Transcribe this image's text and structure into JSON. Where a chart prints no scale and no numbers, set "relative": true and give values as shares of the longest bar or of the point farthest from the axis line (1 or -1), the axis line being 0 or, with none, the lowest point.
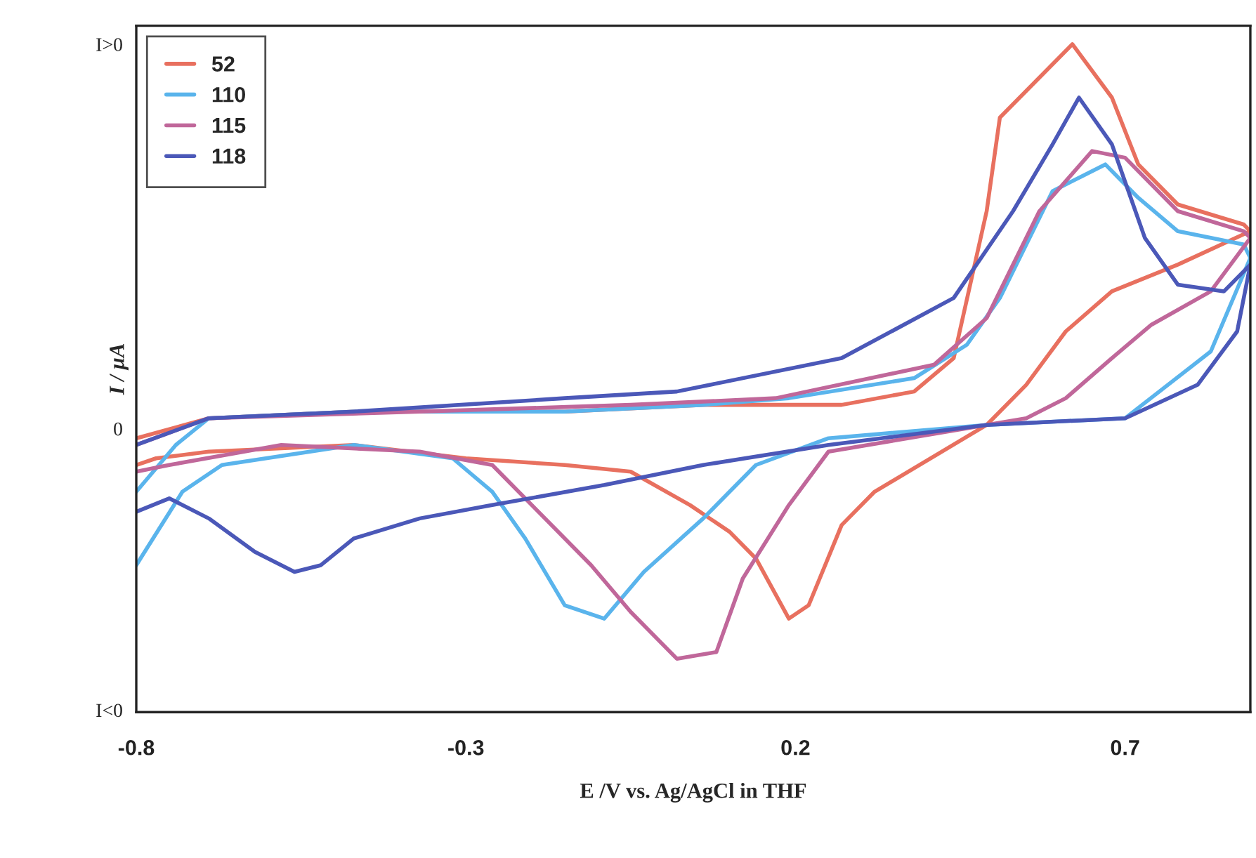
{
  "chart_data": {
    "type": "line",
    "relative": true,
    "xlabel": "E /V vs. Ag/AgCl in THF",
    "ylabel": "I / µA",
    "xlim": [
      -0.8,
      0.89
    ],
    "xticks": [
      -0.8,
      -0.3,
      0.2,
      0.7
    ],
    "annotations": [
      "I>0",
      "0",
      "I<0"
    ],
    "legend": "top left",
    "grid": false,
    "marker": "none",
    "line_style": "solid",
    "series": [
      {
        "name": "52",
        "color": "#e8705f",
        "x": [
          -0.8,
          -0.69,
          -0.47,
          -0.15,
          0.06,
          0.27,
          0.38,
          0.44,
          0.49,
          0.51,
          0.62,
          0.68,
          0.72,
          0.78,
          0.88,
          0.89,
          0.78,
          0.68,
          0.61,
          0.55,
          0.49,
          0.32,
          0.27,
          0.22,
          0.19,
          0.14,
          0.1,
          0.04,
          -0.05,
          -0.15,
          -0.3,
          -0.47,
          -0.69,
          -0.77,
          -0.8
        ],
        "values": [
          0.41,
          0.44,
          0.45,
          0.45,
          0.46,
          0.46,
          0.48,
          0.53,
          0.75,
          0.89,
          1.0,
          0.92,
          0.82,
          0.76,
          0.73,
          0.72,
          0.67,
          0.63,
          0.57,
          0.49,
          0.43,
          0.33,
          0.28,
          0.16,
          0.14,
          0.23,
          0.27,
          0.31,
          0.36,
          0.37,
          0.38,
          0.4,
          0.39,
          0.38,
          0.37
        ]
      },
      {
        "name": "110",
        "color": "#5ab4ec",
        "x": [
          -0.8,
          -0.74,
          -0.69,
          -0.47,
          -0.15,
          0.06,
          0.19,
          0.38,
          0.46,
          0.51,
          0.59,
          0.67,
          0.72,
          0.78,
          0.88,
          0.89,
          0.83,
          0.7,
          0.49,
          0.25,
          0.14,
          0.06,
          -0.03,
          -0.09,
          -0.15,
          -0.21,
          -0.26,
          -0.32,
          -0.47,
          -0.67,
          -0.73,
          -0.8
        ],
        "values": [
          0.33,
          0.4,
          0.44,
          0.45,
          0.45,
          0.46,
          0.47,
          0.5,
          0.55,
          0.62,
          0.78,
          0.82,
          0.77,
          0.72,
          0.7,
          0.68,
          0.54,
          0.44,
          0.43,
          0.41,
          0.37,
          0.29,
          0.21,
          0.14,
          0.16,
          0.26,
          0.33,
          0.38,
          0.4,
          0.37,
          0.33,
          0.22
        ]
      },
      {
        "name": "115",
        "color": "#c0679a",
        "x": [
          -0.8,
          -0.69,
          -0.37,
          -0.05,
          0.17,
          0.41,
          0.49,
          0.57,
          0.65,
          0.7,
          0.78,
          0.88,
          0.89,
          0.83,
          0.74,
          0.68,
          0.61,
          0.55,
          0.25,
          0.19,
          0.12,
          0.08,
          0.02,
          -0.05,
          -0.11,
          -0.18,
          -0.26,
          -0.37,
          -0.58,
          -0.75,
          -0.8
        ],
        "values": [
          0.4,
          0.44,
          0.45,
          0.46,
          0.47,
          0.52,
          0.59,
          0.75,
          0.84,
          0.83,
          0.75,
          0.72,
          0.71,
          0.63,
          0.58,
          0.53,
          0.47,
          0.44,
          0.39,
          0.31,
          0.2,
          0.09,
          0.08,
          0.15,
          0.22,
          0.29,
          0.37,
          0.39,
          0.4,
          0.37,
          0.36
        ]
      },
      {
        "name": "118",
        "color": "#4b58b8",
        "x": [
          -0.8,
          -0.69,
          -0.47,
          -0.15,
          0.02,
          0.27,
          0.44,
          0.53,
          0.59,
          0.63,
          0.68,
          0.73,
          0.78,
          0.85,
          0.89,
          0.87,
          0.81,
          0.7,
          0.49,
          0.25,
          0.06,
          -0.09,
          -0.26,
          -0.37,
          -0.47,
          -0.52,
          -0.56,
          -0.62,
          -0.69,
          -0.75,
          -0.8
        ],
        "values": [
          0.4,
          0.44,
          0.45,
          0.47,
          0.48,
          0.53,
          0.62,
          0.75,
          0.85,
          0.92,
          0.85,
          0.71,
          0.64,
          0.63,
          0.67,
          0.57,
          0.49,
          0.44,
          0.43,
          0.4,
          0.37,
          0.34,
          0.31,
          0.29,
          0.26,
          0.22,
          0.21,
          0.24,
          0.29,
          0.32,
          0.3
        ]
      }
    ]
  }
}
